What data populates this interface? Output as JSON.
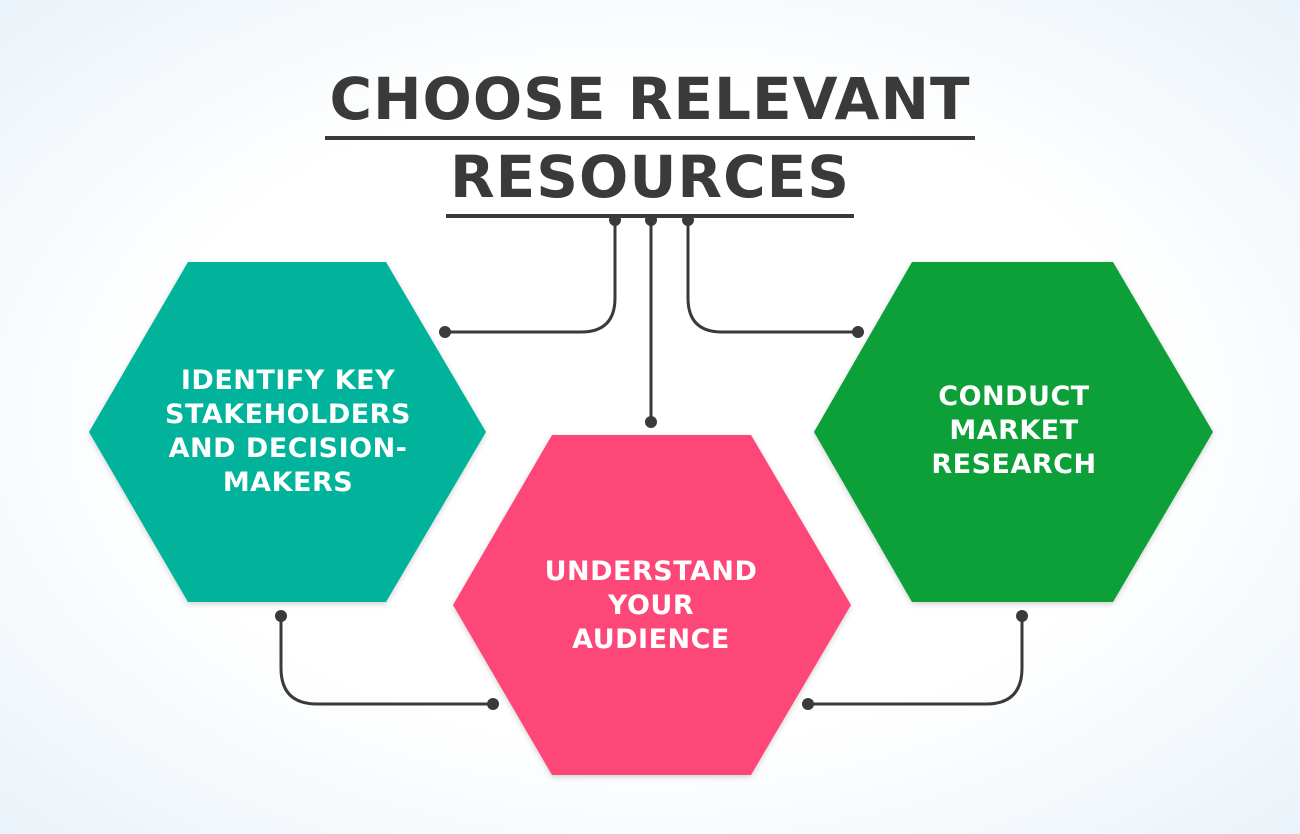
{
  "title": {
    "line1": "CHOOSE RELEVANT",
    "line2": "RESOURCES"
  },
  "nodes": [
    {
      "id": "identify",
      "lines": [
        "IDENTIFY KEY",
        "STAKEHOLDERS",
        "AND DECISION-",
        "MAKERS"
      ],
      "color": "#05b39a"
    },
    {
      "id": "understand",
      "lines": [
        "UNDERSTAND",
        "YOUR",
        "AUDIENCE"
      ],
      "color": "#fc4678"
    },
    {
      "id": "conduct",
      "lines": [
        "CONDUCT",
        "MARKET",
        "RESEARCH"
      ],
      "color": "#0a9f39"
    }
  ],
  "connector_color": "#3a3a3a"
}
